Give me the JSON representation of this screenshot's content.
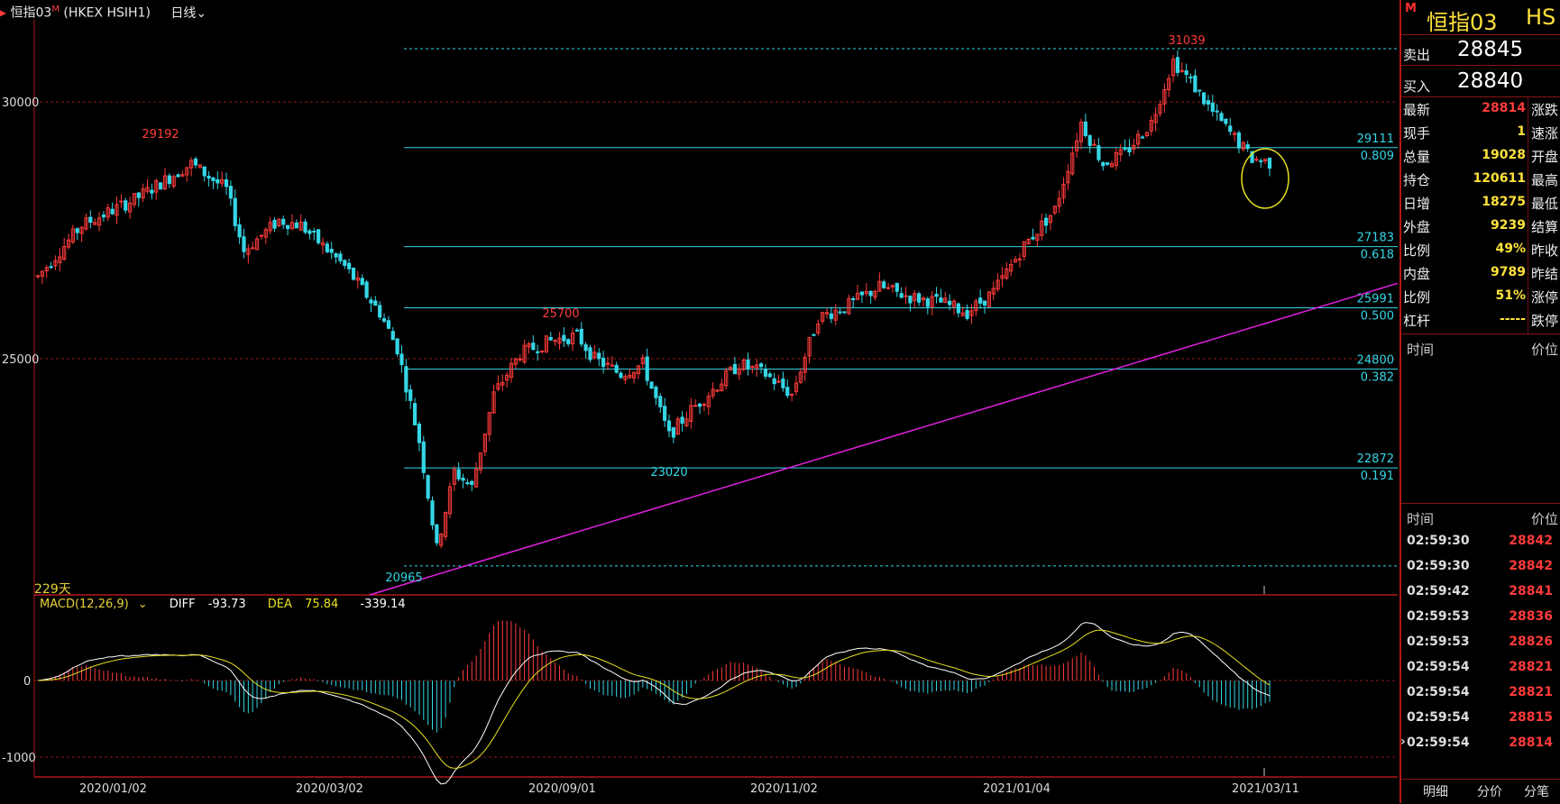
{
  "header": {
    "symbol_name": "恒指03",
    "symbol_mark": "M",
    "symbol_code": "(HKEX HSIH1)",
    "period": "日线"
  },
  "chart": {
    "days_label": "229天",
    "x_labels": [
      "2020/01/02",
      "2020/03/02",
      "2020/09/01",
      "2020/11/02",
      "2021/01/04",
      "2021/03/11"
    ],
    "y_labels": [
      "30000",
      "25000",
      "0",
      "-1000"
    ],
    "price_annotations": [
      "31039",
      "29192",
      "25700",
      "23020",
      "20965"
    ],
    "fib_levels": [
      {
        "price": "29111",
        "ratio": "0.809"
      },
      {
        "price": "27183",
        "ratio": "0.618"
      },
      {
        "price": "25991",
        "ratio": "0.500"
      },
      {
        "price": "24800",
        "ratio": "0.382"
      },
      {
        "price": "22872",
        "ratio": "0.191"
      }
    ],
    "macd": {
      "title": "MACD(12,26,9)",
      "diff_label": "DIFF",
      "diff_value": "-93.73",
      "dea_label": "DEA",
      "dea_value": "75.84",
      "macd_value": "-339.14"
    },
    "colors": {
      "up": "#ff3b3b",
      "down": "#35d6e6",
      "fib": "#35d6e6",
      "trend": "#e020e0",
      "dea": "#e8e020",
      "diff": "#ffffff",
      "grid": "#8a1a1a"
    }
  },
  "chart_data": {
    "type": "candlestick",
    "title": "",
    "y_range": [
      20400,
      31600
    ],
    "annotated_high": 31039,
    "annotated_low": 20965,
    "last_price": 28814,
    "fib_levels": [
      29111,
      27183,
      25991,
      24800,
      22872
    ],
    "macd": {
      "diff": -93.73,
      "dea": 75.84,
      "macd": -339.14
    }
  },
  "quote": {
    "sell_label": "卖出",
    "sell_value": "28845",
    "buy_label": "买入",
    "buy_value": "28840",
    "rows": [
      {
        "label": "最新",
        "value": "28814",
        "color": "#ff3b3b",
        "label2": "涨跌"
      },
      {
        "label": "现手",
        "value": "1",
        "color": "#ffe23a",
        "label2": "速涨"
      },
      {
        "label": "总量",
        "value": "19028",
        "color": "#ffe23a",
        "label2": "开盘"
      },
      {
        "label": "持仓",
        "value": "120611",
        "color": "#ffe23a",
        "label2": "最高"
      },
      {
        "label": "日增",
        "value": "18275",
        "color": "#ffe23a",
        "label2": "最低"
      },
      {
        "label": "外盘",
        "value": "9239",
        "color": "#ffe23a",
        "label2": "结算"
      },
      {
        "label": "比例",
        "value": "49%",
        "color": "#ffe23a",
        "label2": "昨收"
      },
      {
        "label": "内盘",
        "value": "9789",
        "color": "#ffe23a",
        "label2": "昨结"
      },
      {
        "label": "比例",
        "value": "51%",
        "color": "#ffe23a",
        "label2": "涨停"
      },
      {
        "label": "杠杆",
        "value": "-----",
        "color": "#ffe23a",
        "label2": "跌停"
      }
    ]
  },
  "section1": {
    "col1": "时间",
    "col2": "价位"
  },
  "section2": {
    "col1": "时间",
    "col2": "价位"
  },
  "ticks": [
    {
      "time": "02:59:30",
      "price": "28842"
    },
    {
      "time": "02:59:30",
      "price": "28842"
    },
    {
      "time": "02:59:42",
      "price": "28841"
    },
    {
      "time": "02:59:53",
      "price": "28836"
    },
    {
      "time": "02:59:53",
      "price": "28826"
    },
    {
      "time": "02:59:54",
      "price": "28821"
    },
    {
      "time": "02:59:54",
      "price": "28821"
    },
    {
      "time": "02:59:54",
      "price": "28815"
    },
    {
      "time": "02:59:54",
      "price": "28814"
    }
  ],
  "tabs": [
    "明细",
    "分价",
    "分笔"
  ]
}
